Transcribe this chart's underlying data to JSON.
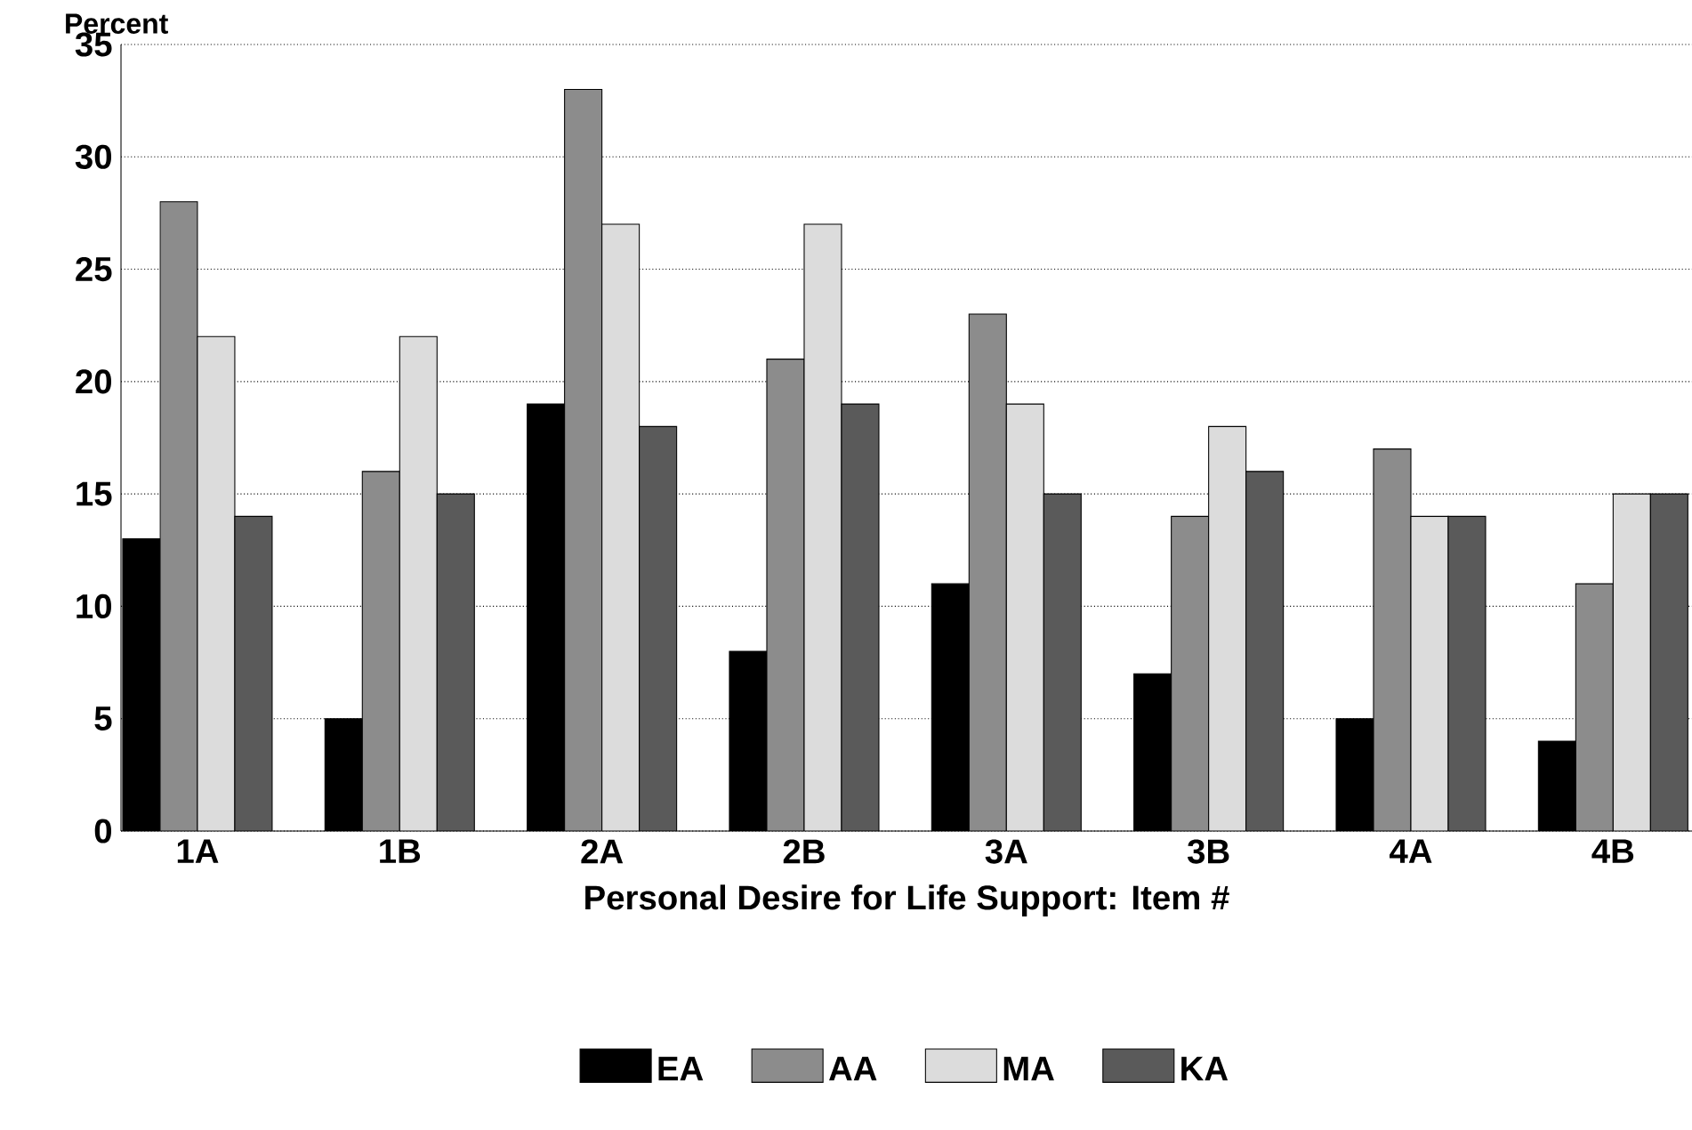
{
  "chart_data": {
    "type": "bar",
    "xlabel": "Personal Desire for Life Support: Item #",
    "ylabel": "Percent",
    "categories": [
      "1A",
      "1B",
      "2A",
      "2B",
      "3A",
      "3B",
      "4A",
      "4B"
    ],
    "series": [
      {
        "name": "EA",
        "color": "#000000",
        "values": [
          13,
          5,
          19,
          8,
          11,
          7,
          5,
          4
        ]
      },
      {
        "name": "AA",
        "color": "#8c8c8c",
        "values": [
          28,
          16,
          33,
          21,
          23,
          14,
          17,
          11
        ]
      },
      {
        "name": "MA",
        "color": "#dcdcdc",
        "values": [
          22,
          22,
          27,
          27,
          19,
          18,
          14,
          15
        ]
      },
      {
        "name": "KA",
        "color": "#5a5a5a",
        "values": [
          14,
          15,
          18,
          19,
          15,
          16,
          14,
          15
        ]
      }
    ],
    "ylim": [
      0,
      35
    ],
    "yticks": [
      0,
      5,
      10,
      15,
      20,
      25,
      30,
      35
    ],
    "grid": "y",
    "legend": "bottom"
  }
}
